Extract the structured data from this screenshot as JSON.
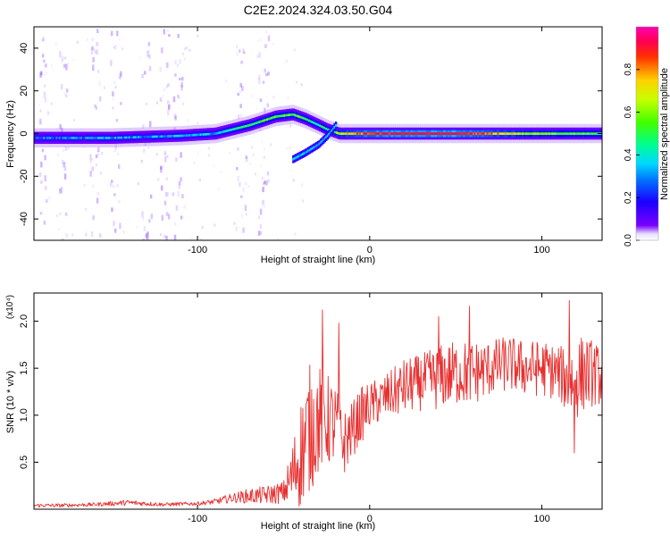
{
  "title": "C2E2.2024.324.03.50.G04",
  "colors": {
    "snr_line": "#e83030",
    "spectrogram_low": "#6a00ff",
    "spectrogram_high": "#ff0000"
  },
  "chart_data": [
    {
      "type": "heatmap",
      "title": "C2E2.2024.324.03.50.G04",
      "xlabel": "Height of straight line (km)",
      "ylabel": "Frequency (Hz)",
      "xlim": [
        -195,
        135
      ],
      "ylim": [
        -50,
        50
      ],
      "x_ticks": [
        "-100",
        "0",
        "100"
      ],
      "x_tick_values": [
        -100,
        0,
        100
      ],
      "y_ticks": [
        "-40",
        "-20",
        "0",
        "20",
        "40"
      ],
      "y_tick_values": [
        -40,
        -20,
        0,
        20,
        40
      ],
      "colorbar": {
        "label": "Normalized spectral amplitude",
        "range": [
          0,
          1
        ],
        "ticks": [
          "0.0",
          "0.2",
          "0.4",
          "0.6",
          "0.8"
        ],
        "tick_values": [
          0.0,
          0.2,
          0.4,
          0.6,
          0.8
        ],
        "colormap": "rainbow (purple to magenta)"
      },
      "ridge": {
        "x": [
          -195,
          -150,
          -110,
          -90,
          -70,
          -55,
          -45,
          -38,
          -30,
          -25,
          -18,
          0,
          50,
          100,
          135
        ],
        "frequency_hz": [
          -2,
          -2,
          -1,
          0,
          4,
          8,
          9,
          7,
          4,
          2,
          0,
          0,
          0,
          0,
          0
        ],
        "amplitude": [
          0.3,
          0.35,
          0.35,
          0.4,
          0.55,
          0.6,
          0.6,
          0.55,
          0.5,
          0.55,
          0.7,
          0.95,
          1.0,
          0.6,
          0.55
        ]
      },
      "branch": {
        "x": [
          -45,
          -38,
          -30,
          -25,
          -20
        ],
        "frequency_hz": [
          -12,
          -9,
          -5,
          -1,
          4
        ]
      },
      "noise_columns_km": [
        -190,
        -178,
        -160,
        -148,
        -130,
        -120,
        -112,
        -75,
        -62
      ]
    },
    {
      "type": "line",
      "xlabel": "Height of straight line (km)",
      "ylabel": "SNR (10 * v/v)",
      "y_multiplier": "(x10⁴)",
      "xlim": [
        -195,
        135
      ],
      "ylim": [
        0,
        2.3
      ],
      "x_ticks": [
        "-100",
        "0",
        "100"
      ],
      "x_tick_values": [
        -100,
        0,
        100
      ],
      "y_ticks": [
        "0.5",
        "1.0",
        "1.5",
        "2.0"
      ],
      "y_tick_values": [
        0.5,
        1.0,
        1.5,
        2.0
      ],
      "series": [
        {
          "x": [
            -195,
            -180,
            -160,
            -140,
            -120,
            -100,
            -90,
            -80,
            -70,
            -60,
            -50,
            -45,
            -40,
            -35,
            -30,
            -25,
            -20,
            -15,
            -10,
            -5,
            0,
            10,
            20,
            30,
            40,
            50,
            60,
            70,
            80,
            90,
            100,
            110,
            115,
            120,
            125,
            130,
            135
          ],
          "values": [
            0.04,
            0.04,
            0.05,
            0.07,
            0.05,
            0.06,
            0.08,
            0.12,
            0.14,
            0.15,
            0.18,
            0.35,
            0.6,
            0.85,
            0.95,
            0.95,
            0.9,
            0.7,
            0.85,
            1.0,
            1.1,
            1.2,
            1.3,
            1.35,
            1.4,
            1.45,
            1.45,
            1.5,
            1.55,
            1.5,
            1.5,
            1.45,
            1.35,
            1.4,
            1.45,
            1.45,
            1.4
          ],
          "spread": [
            0.02,
            0.02,
            0.02,
            0.03,
            0.02,
            0.02,
            0.03,
            0.05,
            0.08,
            0.1,
            0.12,
            0.35,
            0.6,
            0.7,
            0.6,
            0.5,
            0.45,
            0.35,
            0.3,
            0.3,
            0.25,
            0.25,
            0.3,
            0.3,
            0.35,
            0.35,
            0.35,
            0.3,
            0.3,
            0.3,
            0.3,
            0.3,
            0.35,
            0.45,
            0.4,
            0.35,
            0.3
          ],
          "peaks": [
            {
              "x": -27.5,
              "value": 2.12
            },
            {
              "x": -18,
              "value": 1.98
            },
            {
              "x": 40,
              "value": 2.05
            },
            {
              "x": 58,
              "value": 2.16
            },
            {
              "x": 116,
              "value": 2.22
            },
            {
              "x": 119,
              "value": 0.6
            }
          ]
        }
      ]
    }
  ]
}
